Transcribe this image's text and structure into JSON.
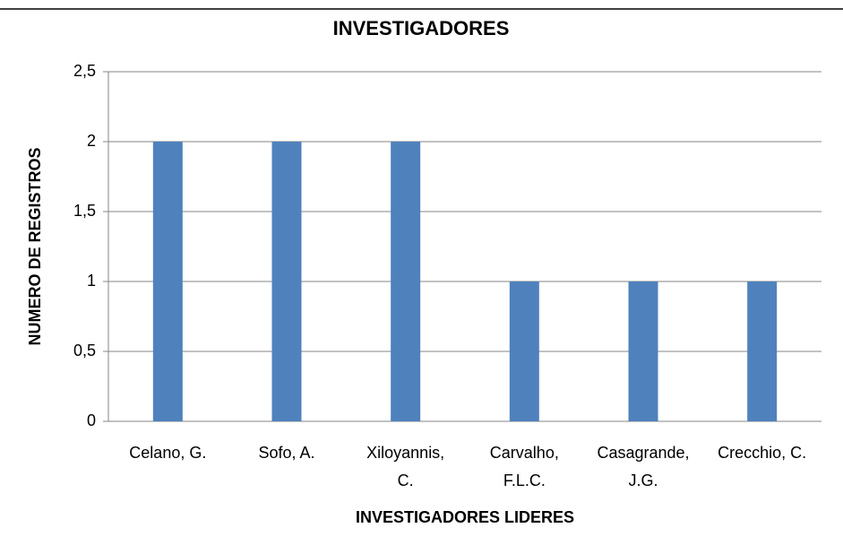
{
  "chart_data": {
    "type": "bar",
    "title": "INVESTIGADORES",
    "x_label": "INVESTIGADORES LIDERES",
    "y_label": "NUMERO DE REGISTROS",
    "categories": [
      "Celano, G.",
      "Sofo, A.",
      "Xiloyannis, C.",
      "Carvalho, F.L.C.",
      "Casagrande, J.G.",
      "Crecchio, C."
    ],
    "values": [
      2,
      2,
      2,
      1,
      1,
      1
    ],
    "color": "#4f81bd",
    "ylim": [
      0,
      2.5
    ],
    "yticks": [
      0,
      {
        "value": 0.5,
        "label": "0,5"
      },
      1,
      {
        "value": 1.5,
        "label": "1,5"
      },
      2,
      {
        "value": 2.5,
        "label": "2,5"
      }
    ],
    "grid": true
  }
}
